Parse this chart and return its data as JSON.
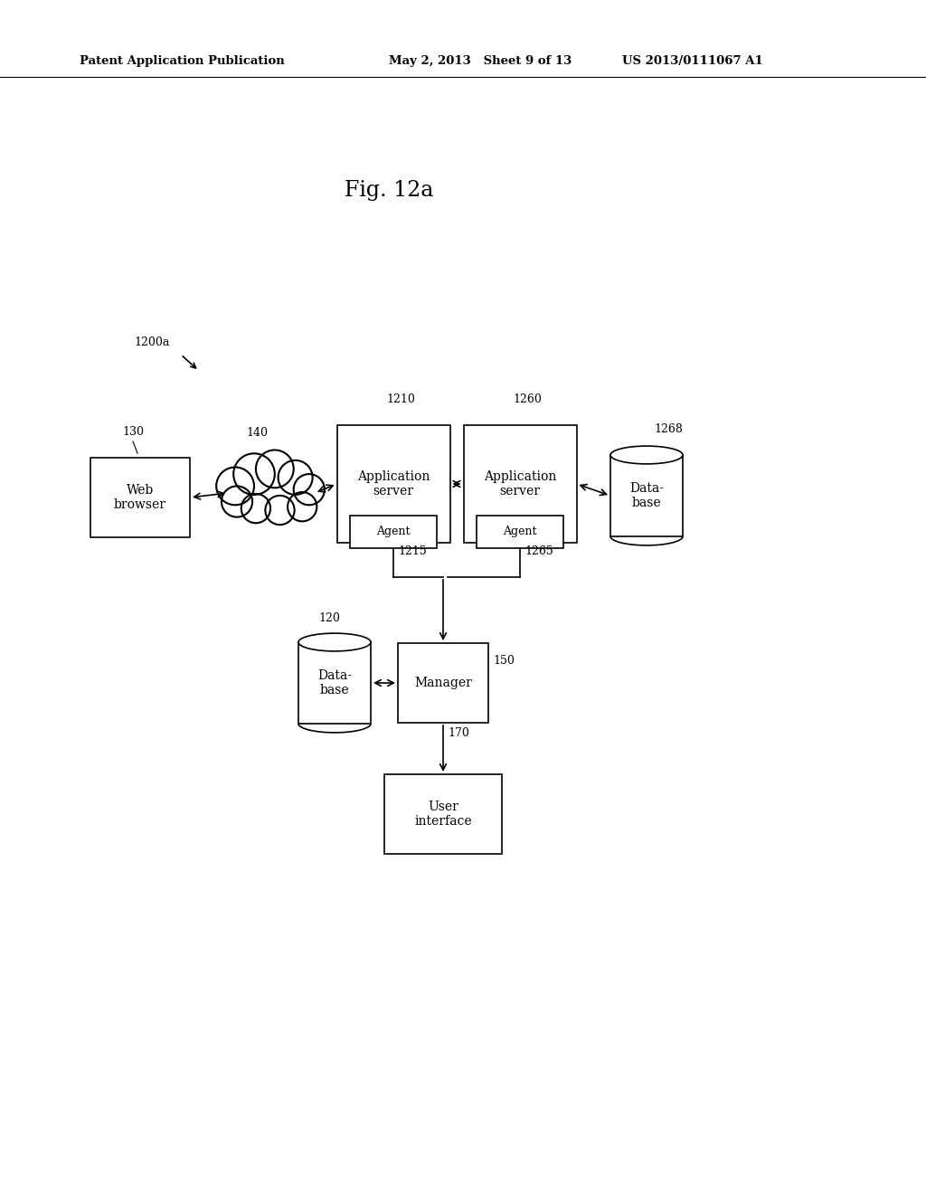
{
  "bg_color": "#ffffff",
  "header_left": "Patent Application Publication",
  "header_mid": "May 2, 2013   Sheet 9 of 13",
  "header_right": "US 2013/0111067 A1",
  "fig_label": "Fig. 12a",
  "diagram_label": "1200a",
  "font_size_header": 9.5,
  "font_size_fig": 17,
  "font_size_label": 10,
  "font_size_id": 9
}
